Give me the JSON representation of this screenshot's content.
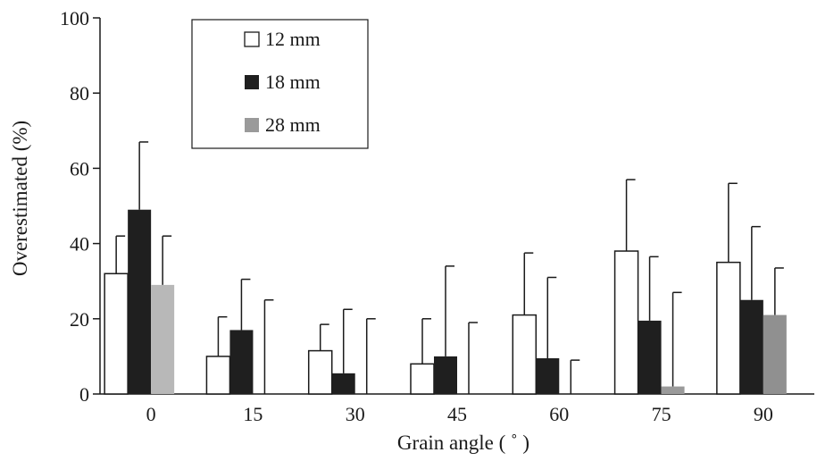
{
  "chart_data": {
    "type": "bar",
    "xlabel": "Grain angle ( ˚ )",
    "ylabel": "Overestimated (%)",
    "ylim": [
      0,
      100
    ],
    "yticks": [
      "0",
      "20",
      "40",
      "60",
      "80",
      "100"
    ],
    "categories": [
      "0",
      "15",
      "30",
      "45",
      "60",
      "75",
      "90"
    ],
    "grid": false,
    "legend_position": "top-left",
    "series": [
      {
        "name": "12 mm",
        "fill": "#ffffff",
        "values": [
          32,
          10,
          11.5,
          8,
          21,
          38,
          35
        ],
        "error_upper": [
          42,
          20.5,
          18.5,
          20,
          37.5,
          57,
          56
        ]
      },
      {
        "name": "18 mm",
        "fill": "#1f1f1f",
        "values": [
          49,
          17,
          5.5,
          10,
          9.5,
          19.5,
          25
        ],
        "error_upper": [
          67,
          30.5,
          22.5,
          34,
          31,
          36.5,
          44.5
        ]
      },
      {
        "name": "28 mm",
        "fill": "#9a9a9a",
        "fill_by_category": [
          "#b8b8b8",
          null,
          null,
          null,
          null,
          "#9a9a9a",
          "#909090"
        ],
        "values": [
          29,
          0,
          0,
          0,
          0,
          2,
          21
        ],
        "error_upper": [
          42,
          25,
          20,
          19,
          9,
          27,
          33.5
        ]
      }
    ]
  }
}
